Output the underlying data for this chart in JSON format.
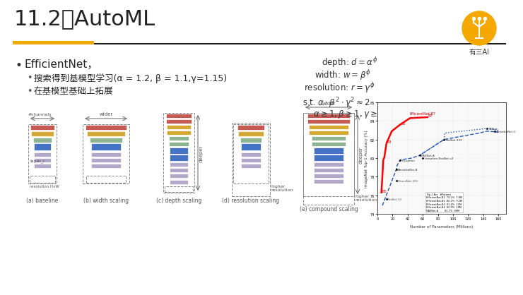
{
  "title": "11.2、AutoML",
  "title_fontsize": 22,
  "background_color": "#ffffff",
  "header_bar_color": "#f5a800",
  "header_bar2_color": "#1a1a1a",
  "bullet1": "EfficientNet，",
  "bullet2": "搜索得到基模型学习(α = 1.2, β = 1.1,γ=1.15)",
  "bullet3": "在基模型基础上拓展",
  "formula1": "depth: $d = \\alpha^{\\phi}$",
  "formula2": "width: $w = \\beta^{\\phi}$",
  "formula3": "resolution: $r = \\gamma^{\\phi}$",
  "formula4": "s.t. $\\alpha \\cdot \\beta^{2} \\cdot \\gamma^{2} \\approx 2$",
  "formula5": "$\\alpha \\geq 1, \\beta \\geq 1, \\gamma \\geq 1$",
  "logo_color": "#f5a800",
  "logo_text": "有三AI",
  "fig_caption_a": "(a) baseline",
  "fig_caption_b": "(b) width scaling",
  "fig_caption_c": "(c) depth scaling",
  "fig_caption_d": "(d) resolution scaling",
  "fig_caption_e": "(e) compound scaling",
  "c_red": "#c45b53",
  "c_gold": "#d4a832",
  "c_green": "#8db48e",
  "c_blue": "#4472c4",
  "c_lavender": "#b4a8c8",
  "c_gray": "#aaaaaa"
}
